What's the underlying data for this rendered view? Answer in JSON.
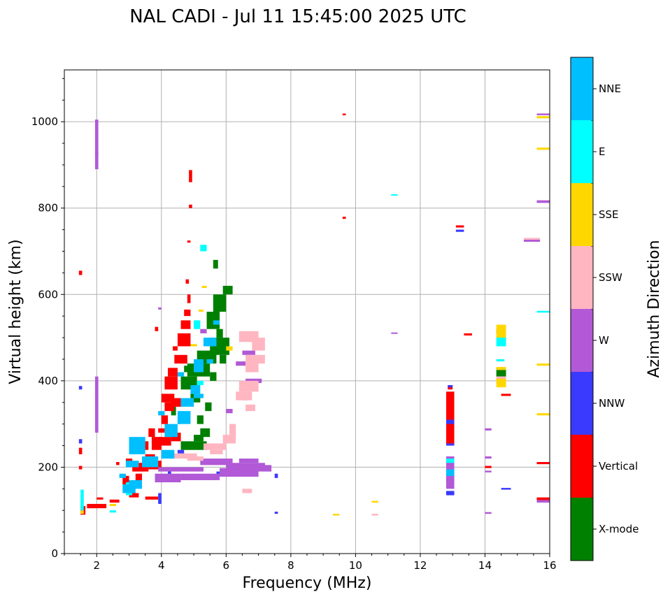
{
  "chart_data": {
    "type": "scatter",
    "title": "NAL CADI - Jul 11 15:45:00 2025 UTC",
    "xlabel": "Frequency (MHz)",
    "ylabel": "Virtual height (km)",
    "xlim": [
      1,
      16
    ],
    "ylim": [
      0,
      1120
    ],
    "xticks": [
      2,
      4,
      6,
      8,
      10,
      12,
      14,
      16
    ],
    "yticks": [
      0,
      200,
      400,
      600,
      800,
      1000
    ],
    "grid": true,
    "colorbar": {
      "label": "Azimuth Direction",
      "categories": [
        "X-mode",
        "Vertical",
        "NNW",
        "W",
        "SSW",
        "SSE",
        "E",
        "NNE"
      ],
      "colors": [
        "#008000",
        "#ff0000",
        "#3a3aff",
        "#b159d6",
        "#ffb6c1",
        "#ffd700",
        "#00ffff",
        "#00bfff"
      ]
    },
    "series": [
      {
        "name": "X-mode",
        "segments": [
          [
            4.3,
            4.45,
            320,
            340
          ],
          [
            4.5,
            4.6,
            300,
            310
          ],
          [
            4.6,
            5.1,
            380,
            410
          ],
          [
            4.8,
            5.5,
            410,
            440
          ],
          [
            5.1,
            5.7,
            440,
            470
          ],
          [
            5.5,
            6.1,
            460,
            500
          ],
          [
            5.4,
            5.8,
            520,
            560
          ],
          [
            5.6,
            6.0,
            560,
            600
          ],
          [
            5.9,
            6.2,
            600,
            620
          ],
          [
            5.6,
            5.75,
            660,
            680
          ],
          [
            4.6,
            5.4,
            240,
            260
          ],
          [
            5.2,
            5.5,
            270,
            290
          ],
          [
            5.35,
            5.55,
            330,
            350
          ],
          [
            5.8,
            6.0,
            440,
            460
          ],
          [
            4.9,
            5.2,
            350,
            370
          ],
          [
            5.0,
            5.3,
            260,
            275
          ],
          [
            5.7,
            5.9,
            500,
            520
          ],
          [
            5.1,
            5.3,
            300,
            320
          ],
          [
            4.7,
            4.95,
            420,
            435
          ],
          [
            5.5,
            5.7,
            400,
            420
          ],
          [
            14.35,
            14.65,
            410,
            430
          ],
          [
            14.35,
            14.65,
            510,
            520
          ]
        ]
      },
      {
        "name": "Vertical",
        "segments": [
          [
            1.45,
            1.55,
            645,
            655
          ],
          [
            1.45,
            1.55,
            230,
            245
          ],
          [
            1.45,
            1.55,
            195,
            203
          ],
          [
            1.5,
            1.65,
            90,
            110
          ],
          [
            1.7,
            2.3,
            105,
            115
          ],
          [
            2.0,
            2.2,
            125,
            130
          ],
          [
            2.4,
            2.7,
            118,
            125
          ],
          [
            2.6,
            2.7,
            205,
            212
          ],
          [
            2.9,
            3.1,
            205,
            220
          ],
          [
            3.2,
            3.4,
            170,
            185
          ],
          [
            3.3,
            3.5,
            195,
            210
          ],
          [
            3.5,
            3.8,
            215,
            230
          ],
          [
            3.7,
            4.0,
            240,
            270
          ],
          [
            3.9,
            4.1,
            280,
            290
          ],
          [
            4.0,
            4.2,
            300,
            320
          ],
          [
            4.0,
            4.4,
            350,
            370
          ],
          [
            4.1,
            4.5,
            380,
            410
          ],
          [
            4.2,
            4.5,
            410,
            430
          ],
          [
            4.4,
            4.8,
            440,
            460
          ],
          [
            4.5,
            4.9,
            480,
            510
          ],
          [
            4.6,
            4.9,
            520,
            540
          ],
          [
            4.7,
            4.9,
            550,
            565
          ],
          [
            4.8,
            4.9,
            580,
            600
          ],
          [
            4.75,
            4.85,
            625,
            635
          ],
          [
            4.8,
            4.9,
            720,
            725
          ],
          [
            4.85,
            4.95,
            800,
            808
          ],
          [
            4.85,
            4.95,
            860,
            888
          ],
          [
            3.8,
            3.9,
            515,
            525
          ],
          [
            2.8,
            3.0,
            160,
            180
          ],
          [
            3.0,
            3.3,
            130,
            140
          ],
          [
            3.5,
            3.9,
            125,
            132
          ],
          [
            3.1,
            3.6,
            190,
            210
          ],
          [
            3.6,
            4.0,
            195,
            215
          ],
          [
            3.9,
            4.3,
            250,
            270
          ],
          [
            4.3,
            4.6,
            260,
            280
          ],
          [
            4.1,
            4.4,
            330,
            350
          ],
          [
            4.3,
            4.6,
            340,
            360
          ],
          [
            4.35,
            4.5,
            470,
            480
          ],
          [
            12.8,
            13.05,
            255,
            375
          ],
          [
            12.85,
            13.0,
            380,
            390
          ],
          [
            13.35,
            13.6,
            505,
            510
          ],
          [
            14.0,
            14.2,
            198,
            203
          ],
          [
            14.5,
            14.8,
            365,
            370
          ],
          [
            15.6,
            16.0,
            122,
            130
          ],
          [
            15.6,
            16.0,
            207,
            212
          ],
          [
            13.1,
            13.35,
            755,
            760
          ],
          [
            9.6,
            9.7,
            775,
            780
          ],
          [
            9.6,
            9.7,
            1015,
            1019
          ],
          [
            3.4,
            3.6,
            240,
            260
          ],
          [
            3.6,
            3.8,
            270,
            290
          ]
        ]
      },
      {
        "name": "NNW",
        "segments": [
          [
            1.45,
            1.55,
            255,
            265
          ],
          [
            1.45,
            1.55,
            380,
            388
          ],
          [
            3.9,
            4.0,
            115,
            140
          ],
          [
            4.2,
            4.3,
            180,
            195
          ],
          [
            7.5,
            7.6,
            175,
            185
          ],
          [
            7.5,
            7.6,
            92,
            97
          ],
          [
            12.8,
            13.05,
            135,
            145
          ],
          [
            12.8,
            13.05,
            250,
            255
          ],
          [
            12.8,
            13.05,
            300,
            310
          ],
          [
            13.1,
            13.35,
            745,
            750
          ],
          [
            1.95,
            2.05,
            920,
            930
          ],
          [
            5.7,
            5.95,
            180,
            190
          ],
          [
            4.5,
            4.7,
            230,
            240
          ],
          [
            14.5,
            14.8,
            148,
            152
          ],
          [
            12.8,
            13.05,
            165,
            175
          ],
          [
            12.85,
            13.0,
            385,
            390
          ]
        ]
      },
      {
        "name": "W",
        "segments": [
          [
            3.8,
            4.6,
            165,
            185
          ],
          [
            4.6,
            5.8,
            170,
            185
          ],
          [
            5.8,
            7.0,
            178,
            198
          ],
          [
            6.0,
            7.2,
            195,
            210
          ],
          [
            6.5,
            7.4,
            190,
            205
          ],
          [
            3.9,
            5.3,
            190,
            200
          ],
          [
            5.2,
            6.2,
            205,
            220
          ],
          [
            6.4,
            7.0,
            210,
            220
          ],
          [
            1.95,
            2.05,
            280,
            410
          ],
          [
            1.95,
            2.05,
            890,
            1005
          ],
          [
            3.9,
            4.0,
            565,
            570
          ],
          [
            5.2,
            5.4,
            510,
            520
          ],
          [
            12.8,
            13.05,
            150,
            225
          ],
          [
            14.0,
            14.2,
            285,
            290
          ],
          [
            14.0,
            14.2,
            220,
            225
          ],
          [
            14.0,
            14.2,
            188,
            192
          ],
          [
            14.0,
            14.2,
            92,
            96
          ],
          [
            15.6,
            16.0,
            812,
            818
          ],
          [
            15.6,
            16.0,
            1015,
            1019
          ],
          [
            15.2,
            15.7,
            722,
            727
          ],
          [
            6.5,
            6.7,
            355,
            370
          ],
          [
            6.6,
            7.1,
            395,
            405
          ],
          [
            6.5,
            6.9,
            460,
            470
          ],
          [
            6.3,
            6.6,
            435,
            445
          ],
          [
            15.6,
            16.0,
            118,
            124
          ],
          [
            11.1,
            11.3,
            510,
            512
          ],
          [
            6.0,
            6.2,
            325,
            335
          ]
        ]
      },
      {
        "name": "SSW",
        "segments": [
          [
            4.1,
            5.1,
            220,
            232
          ],
          [
            5.3,
            6.0,
            240,
            255
          ],
          [
            5.9,
            6.3,
            255,
            275
          ],
          [
            5.5,
            5.9,
            230,
            240
          ],
          [
            6.1,
            6.3,
            275,
            300
          ],
          [
            6.3,
            6.8,
            355,
            375
          ],
          [
            6.4,
            7.0,
            375,
            400
          ],
          [
            6.6,
            7.0,
            420,
            460
          ],
          [
            6.9,
            7.2,
            440,
            460
          ],
          [
            6.4,
            7.0,
            490,
            515
          ],
          [
            6.8,
            7.2,
            470,
            500
          ],
          [
            4.8,
            5.3,
            215,
            225
          ],
          [
            14.35,
            14.65,
            395,
            410
          ],
          [
            15.2,
            15.7,
            727,
            731
          ],
          [
            10.5,
            10.7,
            88,
            92
          ],
          [
            6.5,
            6.8,
            140,
            150
          ],
          [
            6.6,
            6.9,
            330,
            345
          ]
        ]
      },
      {
        "name": "SSE",
        "segments": [
          [
            1.5,
            1.6,
            92,
            100
          ],
          [
            2.4,
            2.6,
            110,
            115
          ],
          [
            4.9,
            5.1,
            480,
            485
          ],
          [
            5.15,
            5.3,
            560,
            565
          ],
          [
            5.25,
            5.4,
            615,
            620
          ],
          [
            14.35,
            14.65,
            385,
            405
          ],
          [
            14.35,
            14.65,
            425,
            432
          ],
          [
            14.35,
            14.65,
            500,
            530
          ],
          [
            15.6,
            16.0,
            320,
            325
          ],
          [
            15.6,
            16.0,
            435,
            440
          ],
          [
            15.6,
            16.0,
            935,
            940
          ],
          [
            15.6,
            16.0,
            1008,
            1013
          ],
          [
            9.3,
            9.5,
            88,
            92
          ],
          [
            10.5,
            10.7,
            118,
            122
          ],
          [
            6.0,
            6.2,
            470,
            480
          ]
        ]
      },
      {
        "name": "E",
        "segments": [
          [
            1.5,
            1.6,
            100,
            148
          ],
          [
            2.9,
            3.1,
            135,
            165
          ],
          [
            5.2,
            5.4,
            700,
            715
          ],
          [
            14.35,
            14.6,
            445,
            450
          ],
          [
            11.1,
            11.3,
            830,
            832
          ],
          [
            5.0,
            5.2,
            520,
            540
          ],
          [
            14.35,
            14.65,
            480,
            500
          ],
          [
            12.8,
            13.05,
            210,
            220
          ],
          [
            15.6,
            16.0,
            558,
            562
          ],
          [
            5.1,
            5.3,
            390,
            400
          ],
          [
            2.4,
            2.6,
            95,
            100
          ]
        ]
      },
      {
        "name": "NNE",
        "segments": [
          [
            2.8,
            3.2,
            140,
            160
          ],
          [
            3.0,
            3.4,
            150,
            170
          ],
          [
            2.9,
            3.3,
            200,
            215
          ],
          [
            3.0,
            3.5,
            230,
            270
          ],
          [
            3.4,
            3.9,
            200,
            225
          ],
          [
            4.0,
            4.4,
            220,
            240
          ],
          [
            4.1,
            4.5,
            270,
            300
          ],
          [
            4.5,
            4.9,
            300,
            330
          ],
          [
            4.6,
            5.0,
            340,
            360
          ],
          [
            4.9,
            5.2,
            370,
            390
          ],
          [
            5.0,
            5.3,
            420,
            450
          ],
          [
            5.3,
            5.7,
            480,
            500
          ],
          [
            5.0,
            5.3,
            360,
            370
          ],
          [
            3.9,
            4.1,
            320,
            330
          ],
          [
            3.3,
            3.5,
            250,
            260
          ],
          [
            2.7,
            2.9,
            175,
            185
          ],
          [
            4.5,
            4.7,
            410,
            420
          ],
          [
            5.4,
            5.6,
            440,
            450
          ],
          [
            12.8,
            13.05,
            180,
            195
          ],
          [
            5.6,
            5.8,
            530,
            540
          ]
        ]
      }
    ]
  }
}
